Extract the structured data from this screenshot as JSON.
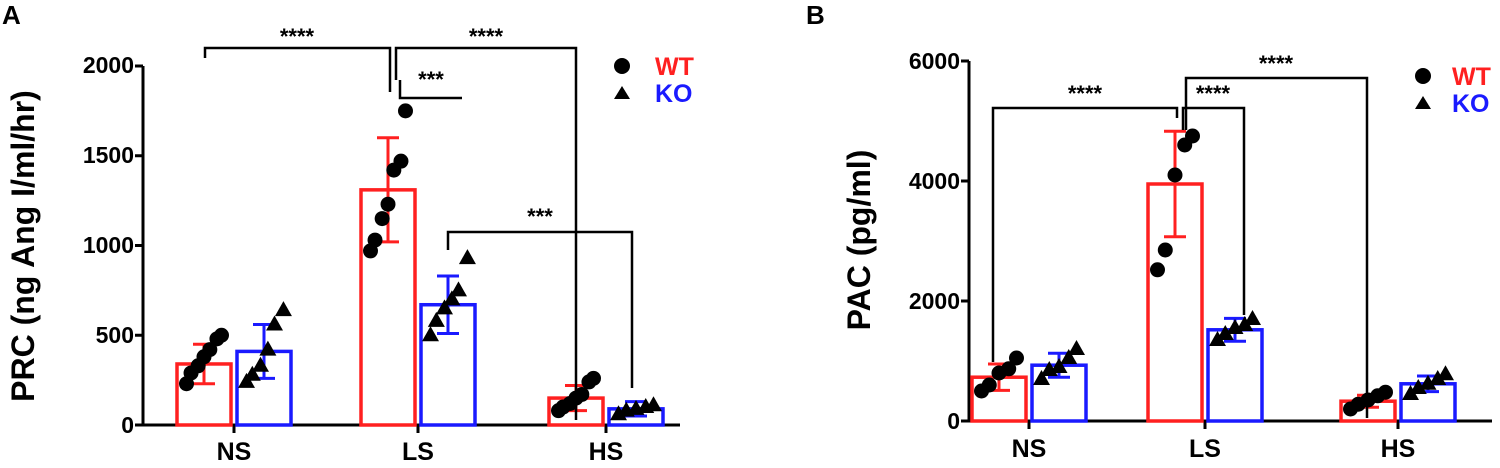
{
  "colors": {
    "wt": "#ff2020",
    "ko": "#1a1aff",
    "axis": "#000000"
  },
  "legend": {
    "wt": "WT",
    "ko": "KO"
  },
  "chart_data": [
    {
      "panel": "A",
      "type": "bar",
      "categories": [
        "NS",
        "LS",
        "HS"
      ],
      "ylabel": "PRC (ng Ang I/ml/hr)",
      "ylim": [
        0,
        2000
      ],
      "yticks": [
        "0",
        "500",
        "1000",
        "1500",
        "2000"
      ],
      "ytick_values": [
        0,
        500,
        1000,
        1500,
        2000
      ],
      "series": [
        {
          "name": "WT",
          "marker": "circle",
          "means": [
            340,
            1310,
            150
          ],
          "sd": [
            110,
            290,
            70
          ],
          "points": [
            [
              230,
              290,
              330,
              380,
              420,
              480,
              500
            ],
            [
              970,
              1030,
              1150,
              1230,
              1420,
              1470,
              1750
            ],
            [
              80,
              100,
              120,
              150,
              170,
              240,
              260
            ]
          ]
        },
        {
          "name": "KO",
          "marker": "triangle",
          "means": [
            410,
            670,
            90
          ],
          "sd": [
            150,
            160,
            40
          ],
          "points": [
            [
              240,
              280,
              330,
              420,
              560,
              640
            ],
            [
              500,
              580,
              650,
              700,
              750,
              930
            ],
            [
              60,
              80,
              90,
              100,
              110
            ]
          ]
        }
      ],
      "comparisons": [
        {
          "label": "****"
        },
        {
          "label": "****"
        },
        {
          "label": "***"
        },
        {
          "label": "***"
        }
      ]
    },
    {
      "panel": "B",
      "type": "bar",
      "categories": [
        "NS",
        "LS",
        "HS"
      ],
      "ylabel": "PAC (pg/ml)",
      "ylim": [
        0,
        6000
      ],
      "yticks": [
        "0",
        "2000",
        "4000",
        "6000"
      ],
      "ytick_values": [
        0,
        2000,
        4000,
        6000
      ],
      "series": [
        {
          "name": "WT",
          "marker": "circle",
          "means": [
            730,
            3950,
            330
          ],
          "sd": [
            220,
            880,
            100
          ],
          "points": [
            [
              500,
              600,
              800,
              870,
              1050
            ],
            [
              2520,
              2850,
              4100,
              4600,
              4750
            ],
            [
              200,
              280,
              350,
              420,
              480
            ]
          ]
        },
        {
          "name": "KO",
          "marker": "triangle",
          "means": [
            930,
            1520,
            620
          ],
          "sd": [
            200,
            190,
            130
          ],
          "points": [
            [
              700,
              850,
              900,
              1050,
              1200
            ],
            [
              1350,
              1450,
              1550,
              1600,
              1700
            ],
            [
              450,
              550,
              620,
              700,
              780
            ]
          ]
        }
      ],
      "comparisons": [
        {
          "label": "****"
        },
        {
          "label": "****"
        },
        {
          "label": "****"
        }
      ]
    }
  ]
}
